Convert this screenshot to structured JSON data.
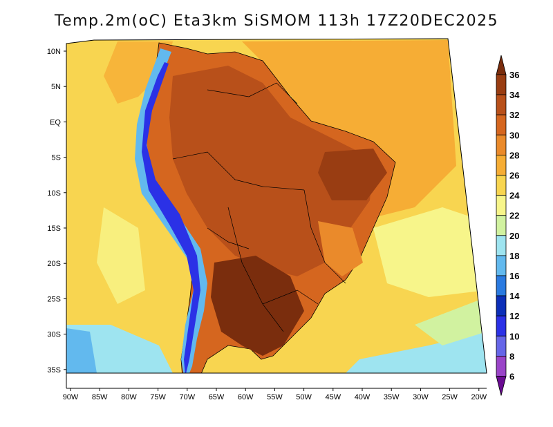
{
  "title": "Temp.2m(oC) Eta3km SiSMOM 113h 17Z20DEC2025",
  "map": {
    "lat_labels": [
      "10N",
      "5N",
      "EQ",
      "5S",
      "10S",
      "15S",
      "20S",
      "25S",
      "30S",
      "35S"
    ],
    "lon_labels": [
      "90W",
      "85W",
      "80W",
      "75W",
      "70W",
      "65W",
      "60W",
      "55W",
      "50W",
      "45W",
      "40W",
      "35W",
      "30W",
      "25W",
      "20W"
    ]
  },
  "colorbar": {
    "labels": [
      "36",
      "34",
      "32",
      "30",
      "28",
      "26",
      "24",
      "22",
      "20",
      "18",
      "16",
      "14",
      "12",
      "10",
      "8",
      "6"
    ],
    "colors": [
      "#7a2d0d",
      "#993d12",
      "#b8501a",
      "#d5661f",
      "#ea8a2b",
      "#f6ad35",
      "#f8d550",
      "#f7f58a",
      "#d1f2a0",
      "#9ee4f0",
      "#62b9ee",
      "#2a7ae0",
      "#0c2fb8",
      "#2b31e6",
      "#6666e8",
      "#9a44c8",
      "#6a0b92"
    ]
  }
}
